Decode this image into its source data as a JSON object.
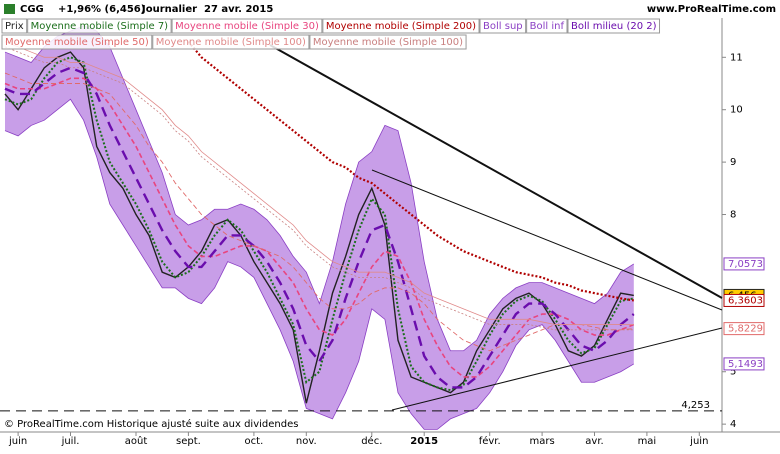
{
  "header": {
    "symbol": "CGG",
    "change": "+1,96% (6,456)",
    "period": "Journalier",
    "date": "27 avr. 2015",
    "site": "www.ProRealTime.com"
  },
  "footer": "© ProRealTime.com Historique ajusté suite aux dividendes",
  "chart_data": {
    "type": "line",
    "categories": [
      null,
      "juin",
      null,
      null,
      null,
      "juil.",
      null,
      null,
      null,
      null,
      "août",
      null,
      null,
      null,
      "sept.",
      null,
      null,
      null,
      null,
      "oct.",
      null,
      null,
      null,
      "nov.",
      null,
      null,
      null,
      null,
      "déc.",
      null,
      null,
      null,
      "2015",
      null,
      null,
      null,
      null,
      "févr.",
      null,
      null,
      null,
      "mars",
      null,
      null,
      null,
      "avr.",
      null,
      null,
      null,
      "mai",
      null,
      null,
      null,
      "juin",
      null
    ],
    "ylim": [
      3.85,
      11.75
    ],
    "yticks": [
      4,
      5,
      8,
      9,
      10,
      11
    ],
    "hline": {
      "value": 4.253,
      "label": "4,253"
    },
    "series": [
      {
        "name": "Prix",
        "color": "#222222",
        "style": "solid",
        "width": 1.4,
        "row": 0,
        "values": [
          10.3,
          10.0,
          10.4,
          10.8,
          11.0,
          11.1,
          10.8,
          9.3,
          8.8,
          8.5,
          8.0,
          7.6,
          6.9,
          6.8,
          7.0,
          7.3,
          7.8,
          7.9,
          7.6,
          7.1,
          6.7,
          6.3,
          5.8,
          4.4,
          5.4,
          6.5,
          7.2,
          8.0,
          8.5,
          7.8,
          5.6,
          4.9,
          4.8,
          4.7,
          4.6,
          4.8,
          5.4,
          5.8,
          6.2,
          6.4,
          6.5,
          6.3,
          5.9,
          5.4,
          5.3,
          5.5,
          6.0,
          6.5,
          6.456,
          null,
          null,
          null,
          null,
          null,
          null
        ],
        "value_labels": [
          null,
          null,
          null,
          null,
          null,
          null,
          null,
          null,
          null,
          null,
          null,
          null,
          null,
          null,
          null,
          null,
          null,
          null,
          null,
          null,
          null,
          null,
          null,
          null,
          null,
          null,
          null,
          null,
          null,
          null,
          null,
          null,
          null,
          null,
          null,
          null,
          null,
          null,
          null,
          null,
          null,
          null,
          null,
          null,
          null,
          null,
          null,
          null,
          "6,456",
          null,
          null,
          null,
          null,
          null,
          null
        ]
      },
      {
        "name": "Moyenne mobile (Simple 7)",
        "color": "#1b6e1b",
        "style": "dotted",
        "width": 2,
        "row": 0,
        "values": [
          10.2,
          10.1,
          10.2,
          10.6,
          10.9,
          11.0,
          10.9,
          9.8,
          9.0,
          8.6,
          8.2,
          7.7,
          7.1,
          6.8,
          6.9,
          7.2,
          7.6,
          7.9,
          7.7,
          7.3,
          6.9,
          6.4,
          5.9,
          4.8,
          5.0,
          6.0,
          6.9,
          7.7,
          8.3,
          8.0,
          6.2,
          5.1,
          4.8,
          4.7,
          4.65,
          4.75,
          5.2,
          5.7,
          6.1,
          6.35,
          6.45,
          6.35,
          6.0,
          5.6,
          5.35,
          5.45,
          5.9,
          6.35,
          6.4,
          null,
          null,
          null,
          null,
          null,
          null
        ]
      },
      {
        "name": "Moyenne mobile (Simple 30)",
        "color": "#e8457f",
        "style": "dashed",
        "width": 1.6,
        "row": 0,
        "values": [
          10.5,
          10.4,
          10.4,
          10.4,
          10.5,
          10.6,
          10.6,
          10.4,
          10.1,
          9.7,
          9.3,
          8.8,
          8.3,
          7.8,
          7.4,
          7.2,
          7.2,
          7.3,
          7.4,
          7.4,
          7.3,
          7.0,
          6.7,
          6.2,
          5.8,
          5.7,
          6.0,
          6.5,
          7.0,
          7.3,
          7.2,
          6.7,
          6.0,
          5.5,
          5.1,
          4.9,
          4.9,
          5.1,
          5.4,
          5.7,
          6.0,
          6.1,
          6.1,
          6.0,
          5.8,
          5.7,
          5.7,
          5.8,
          5.9,
          null,
          null,
          null,
          null,
          null,
          null
        ]
      },
      {
        "name": "Moyenne mobile (Simple 200)",
        "color": "#b00000",
        "style": "dotted",
        "width": 2.2,
        "row": 0,
        "values": [
          null,
          null,
          null,
          null,
          null,
          null,
          null,
          null,
          null,
          null,
          null,
          null,
          null,
          null,
          11.3,
          11.0,
          10.8,
          10.6,
          10.4,
          10.2,
          10.0,
          9.8,
          9.6,
          9.4,
          9.2,
          9.0,
          8.9,
          8.7,
          8.6,
          8.4,
          8.2,
          8.0,
          7.8,
          7.6,
          7.45,
          7.3,
          7.2,
          7.1,
          7.0,
          6.9,
          6.85,
          6.8,
          6.7,
          6.65,
          6.55,
          6.5,
          6.45,
          6.4,
          6.3603,
          null,
          null,
          null,
          null,
          null,
          null
        ],
        "value_labels": [
          null,
          null,
          null,
          null,
          null,
          null,
          null,
          null,
          null,
          null,
          null,
          null,
          null,
          null,
          null,
          null,
          null,
          null,
          null,
          null,
          null,
          null,
          null,
          null,
          null,
          null,
          null,
          null,
          null,
          null,
          null,
          null,
          null,
          null,
          null,
          null,
          null,
          null,
          null,
          null,
          null,
          null,
          null,
          null,
          null,
          null,
          null,
          null,
          "6,3603",
          null,
          null,
          null,
          null,
          null,
          null
        ]
      },
      {
        "name": "Boll sup",
        "color": "#8a3fc4",
        "style": "solid",
        "width": 0.8,
        "row": 0,
        "band": "upper",
        "values": [
          11.1,
          11.0,
          10.9,
          11.2,
          11.4,
          11.5,
          11.6,
          11.5,
          11.2,
          10.6,
          10.0,
          9.4,
          8.8,
          8.0,
          7.8,
          7.9,
          8.1,
          8.1,
          8.2,
          8.1,
          7.9,
          7.6,
          7.2,
          6.9,
          6.3,
          7.1,
          8.2,
          9.0,
          9.2,
          9.7,
          9.6,
          8.6,
          7.1,
          6.0,
          5.4,
          5.4,
          5.6,
          6.1,
          6.4,
          6.6,
          6.7,
          6.7,
          6.6,
          6.5,
          6.4,
          6.3,
          6.5,
          6.9,
          7.0573,
          null,
          null,
          null,
          null,
          null,
          null
        ],
        "value_labels": [
          null,
          null,
          null,
          null,
          null,
          null,
          null,
          null,
          null,
          null,
          null,
          null,
          null,
          null,
          null,
          null,
          null,
          null,
          null,
          null,
          null,
          null,
          null,
          null,
          null,
          null,
          null,
          null,
          null,
          null,
          null,
          null,
          null,
          null,
          null,
          null,
          null,
          null,
          null,
          null,
          null,
          null,
          null,
          null,
          null,
          null,
          null,
          null,
          "7,0573",
          null,
          null,
          null,
          null,
          null,
          null
        ]
      },
      {
        "name": "Boll inf",
        "color": "#8a3fc4",
        "style": "solid",
        "width": 0.8,
        "row": 0,
        "band": "lower",
        "values": [
          9.6,
          9.5,
          9.7,
          9.8,
          10.0,
          10.2,
          9.8,
          9.1,
          8.2,
          7.8,
          7.4,
          7.0,
          6.6,
          6.6,
          6.4,
          6.3,
          6.6,
          7.1,
          7.0,
          6.8,
          6.3,
          5.8,
          5.2,
          4.3,
          4.2,
          4.1,
          4.6,
          5.2,
          6.2,
          6.0,
          4.6,
          4.2,
          3.9,
          3.9,
          4.1,
          4.2,
          4.3,
          4.6,
          5.0,
          5.5,
          5.8,
          5.9,
          5.6,
          5.2,
          4.8,
          4.8,
          4.9,
          5.0,
          5.1493,
          null,
          null,
          null,
          null,
          null,
          null
        ],
        "value_labels": [
          null,
          null,
          null,
          null,
          null,
          null,
          null,
          null,
          null,
          null,
          null,
          null,
          null,
          null,
          null,
          null,
          null,
          null,
          null,
          null,
          null,
          null,
          null,
          null,
          null,
          null,
          null,
          null,
          null,
          null,
          null,
          null,
          null,
          null,
          null,
          null,
          null,
          null,
          null,
          null,
          null,
          null,
          null,
          null,
          null,
          null,
          null,
          null,
          "5,1493",
          null,
          null,
          null,
          null,
          null,
          null
        ]
      },
      {
        "name": "Boll milieu (20 2)",
        "color": "#6a0dad",
        "style": "longdash",
        "width": 2.4,
        "row": 0,
        "values": [
          10.4,
          10.3,
          10.3,
          10.5,
          10.7,
          10.8,
          10.7,
          10.3,
          9.7,
          9.2,
          8.7,
          8.2,
          7.7,
          7.3,
          7.0,
          7.0,
          7.3,
          7.6,
          7.6,
          7.4,
          7.1,
          6.7,
          6.2,
          5.5,
          5.2,
          5.6,
          6.4,
          7.1,
          7.7,
          7.8,
          7.1,
          6.2,
          5.3,
          4.9,
          4.7,
          4.7,
          4.9,
          5.3,
          5.7,
          6.1,
          6.3,
          6.3,
          6.1,
          5.8,
          5.5,
          5.4,
          5.6,
          5.9,
          6.1,
          null,
          null,
          null,
          null,
          null,
          null
        ]
      },
      {
        "name": "Moyenne mobile (Simple 50)",
        "color": "#e06a6a",
        "style": "dashed",
        "width": 0.9,
        "row": 1,
        "values": [
          10.7,
          10.6,
          10.5,
          10.5,
          10.5,
          10.5,
          10.5,
          10.4,
          10.3,
          10.0,
          9.7,
          9.3,
          9.0,
          8.6,
          8.3,
          8.0,
          7.8,
          7.6,
          7.5,
          7.4,
          7.3,
          7.2,
          7.0,
          6.7,
          6.4,
          6.2,
          6.2,
          6.3,
          6.5,
          6.6,
          6.6,
          6.5,
          6.3,
          6.0,
          5.8,
          5.6,
          5.5,
          5.4,
          5.5,
          5.6,
          5.7,
          5.8,
          5.9,
          5.9,
          5.9,
          5.85,
          5.8,
          5.8,
          5.8229,
          null,
          null,
          null,
          null,
          null,
          null
        ],
        "value_labels": [
          null,
          null,
          null,
          null,
          null,
          null,
          null,
          null,
          null,
          null,
          null,
          null,
          null,
          null,
          null,
          null,
          null,
          null,
          null,
          null,
          null,
          null,
          null,
          null,
          null,
          null,
          null,
          null,
          null,
          null,
          null,
          null,
          null,
          null,
          null,
          null,
          null,
          null,
          null,
          null,
          null,
          null,
          null,
          null,
          null,
          null,
          null,
          null,
          "5,8229",
          null,
          null,
          null,
          null,
          null,
          null
        ]
      },
      {
        "name": "Moyenne mobile (Simple 100)",
        "color": "#e08a8a",
        "style": "solid",
        "width": 0.8,
        "row": 1,
        "values": [
          11.3,
          11.2,
          11.1,
          11.0,
          11.0,
          10.9,
          10.9,
          10.8,
          10.7,
          10.6,
          10.4,
          10.2,
          10.0,
          9.7,
          9.5,
          9.2,
          9.0,
          8.8,
          8.6,
          8.4,
          8.2,
          8.0,
          7.8,
          7.5,
          7.3,
          7.1,
          7.0,
          6.9,
          6.9,
          6.9,
          6.8,
          6.7,
          6.5,
          6.4,
          6.3,
          6.2,
          6.1,
          6.0,
          6.0,
          6.0,
          6.0,
          5.95,
          5.9,
          5.9,
          5.9,
          5.9,
          5.9,
          5.9,
          5.9,
          null,
          null,
          null,
          null,
          null,
          null
        ]
      },
      {
        "name": "Moyenne mobile (Simple 100)",
        "color": "#c98080",
        "style": "dotted",
        "width": 0.8,
        "row": 1,
        "values": [
          11.2,
          11.1,
          11.0,
          10.9,
          10.9,
          10.8,
          10.8,
          10.7,
          10.6,
          10.5,
          10.3,
          10.1,
          9.9,
          9.6,
          9.4,
          9.1,
          8.9,
          8.7,
          8.5,
          8.3,
          8.1,
          7.9,
          7.7,
          7.4,
          7.2,
          7.0,
          6.9,
          6.8,
          6.8,
          6.8,
          6.7,
          6.6,
          6.4,
          6.3,
          6.2,
          6.1,
          6.0,
          5.9,
          5.9,
          5.9,
          5.9,
          5.85,
          5.8,
          5.8,
          5.8,
          5.8,
          5.8,
          5.8,
          5.8,
          null,
          null,
          null,
          null,
          null,
          null
        ]
      }
    ]
  }
}
